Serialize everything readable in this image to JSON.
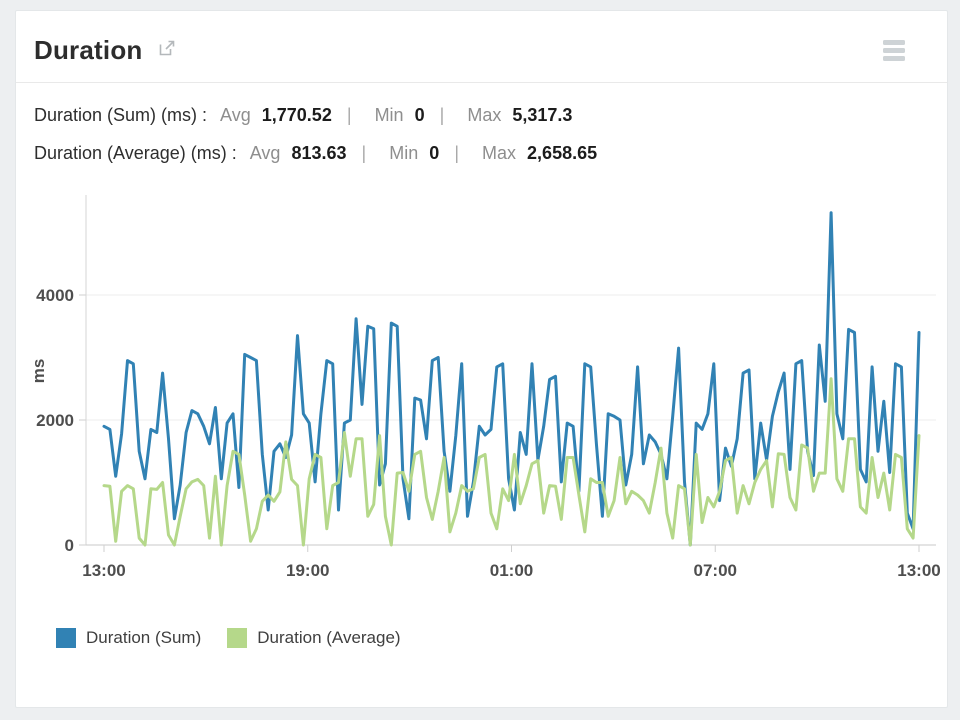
{
  "header": {
    "title": "Duration"
  },
  "stats": [
    {
      "label": "Duration (Sum) (ms) :",
      "avg_label": "Avg",
      "avg_value": "1,770.52",
      "sep": "|",
      "min_label": "Min",
      "min_value": "0",
      "max_label": "Max",
      "max_value": "5,317.3"
    },
    {
      "label": "Duration (Average) (ms) :",
      "avg_label": "Avg",
      "avg_value": "813.63",
      "sep": "|",
      "min_label": "Min",
      "min_value": "0",
      "max_label": "Max",
      "max_value": "2,658.65"
    }
  ],
  "chart_data": {
    "type": "line",
    "title": "Duration",
    "xlabel": "",
    "ylabel": "ms",
    "ylim": [
      0,
      5600
    ],
    "grid": true,
    "legend_position": "bottom",
    "x_tick_labels": [
      "13:00",
      "19:00",
      "01:00",
      "07:00",
      "13:00"
    ],
    "y_ticks": [
      0,
      2000,
      4000
    ],
    "y_tick_labels": [
      "0",
      "2000",
      "4000"
    ],
    "axis_color": "#c9c9c9",
    "grid_color": "#ececec",
    "tick_label_color": "#4e4e4e",
    "series": [
      {
        "name": "Duration (Sum)",
        "color": "#3182b4",
        "stats": {
          "avg": 1770.52,
          "min": 0,
          "max": 5317.3
        },
        "values": [
          1900,
          1850,
          1100,
          1780,
          2950,
          2900,
          1500,
          1060,
          1850,
          1800,
          2750,
          1700,
          420,
          960,
          1800,
          2150,
          2100,
          1900,
          1620,
          2200,
          1060,
          1950,
          2100,
          920,
          3050,
          3000,
          2950,
          1450,
          560,
          1500,
          1620,
          1400,
          1760,
          3350,
          2100,
          1950,
          1010,
          2100,
          2950,
          2900,
          560,
          1950,
          2000,
          3620,
          2250,
          3500,
          3460,
          960,
          1300,
          3550,
          3500,
          1060,
          420,
          2350,
          2320,
          1700,
          2950,
          3000,
          1500,
          860,
          1750,
          2900,
          460,
          1010,
          1900,
          1760,
          1850,
          2850,
          2900,
          1060,
          560,
          1800,
          1450,
          2900,
          1360,
          1900,
          2650,
          2700,
          1010,
          1950,
          1900,
          860,
          2900,
          2850,
          1600,
          460,
          2100,
          2060,
          2000,
          960,
          1450,
          2850,
          1300,
          1760,
          1650,
          1450,
          1060,
          2060,
          3150,
          1010,
          0,
          1950,
          1850,
          2100,
          2900,
          710,
          1550,
          1260,
          1700,
          2750,
          2800,
          1060,
          1950,
          1360,
          2060,
          2450,
          2750,
          1210,
          2900,
          2950,
          1500,
          1110,
          3200,
          2300,
          5317.3,
          2100,
          1700,
          3450,
          3400,
          1210,
          1010,
          2850,
          1500,
          2300,
          1160,
          2900,
          2850,
          510,
          260,
          3400
        ]
      },
      {
        "name": "Duration (Average)",
        "color": "#b5d88a",
        "stats": {
          "avg": 813.63,
          "min": 0,
          "max": 2658.65
        },
        "values": [
          950,
          940,
          60,
          860,
          950,
          900,
          110,
          0,
          900,
          890,
          1000,
          160,
          0,
          460,
          900,
          1010,
          1050,
          950,
          110,
          1100,
          0,
          950,
          1500,
          1450,
          800,
          60,
          260,
          700,
          800,
          700,
          850,
          1650,
          1050,
          950,
          0,
          1060,
          1450,
          1400,
          260,
          950,
          1000,
          1800,
          1100,
          1700,
          1700,
          460,
          650,
          1750,
          460,
          0,
          1150,
          1160,
          860,
          1450,
          1500,
          760,
          410,
          860,
          1400,
          210,
          510,
          950,
          860,
          900,
          1400,
          1450,
          510,
          260,
          900,
          710,
          1450,
          660,
          950,
          1300,
          1350,
          510,
          950,
          940,
          410,
          1400,
          1400,
          800,
          210,
          1060,
          1000,
          1000,
          460,
          710,
          1400,
          660,
          860,
          800,
          710,
          510,
          1000,
          1550,
          510,
          110,
          950,
          900,
          0,
          1450,
          360,
          760,
          610,
          860,
          1350,
          1400,
          510,
          950,
          660,
          1000,
          1210,
          1350,
          610,
          1460,
          1450,
          760,
          560,
          1600,
          1550,
          860,
          1150,
          1150,
          2658.65,
          1060,
          860,
          1700,
          1700,
          610,
          510,
          1400,
          760,
          1150,
          560,
          1450,
          1400,
          260,
          110,
          1750
        ]
      }
    ]
  }
}
